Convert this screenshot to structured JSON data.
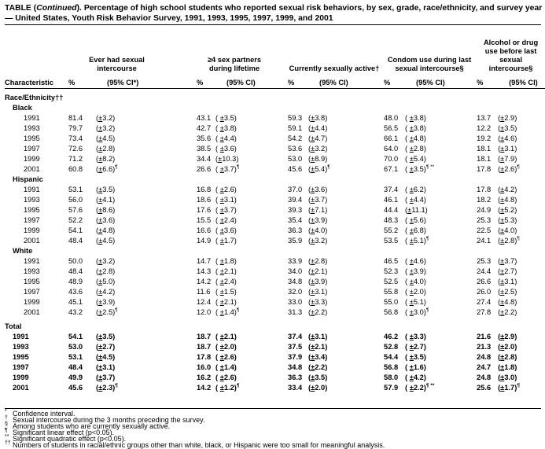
{
  "title": {
    "prefix": "TABLE (",
    "continued": "Continued",
    "text": "). Percentage of high school students who reported sexual risk behaviors, by sex, grade, race/ethnicity, and survey year — United States, Youth Risk Behavior Survey, 1991, 1993, 1995, 1997, 1999, and  2001"
  },
  "columns": {
    "characteristic": "Characteristic",
    "groups": [
      {
        "label": "Ever had sexual intercourse",
        "pct": "%",
        "ci": "(95% CI*)"
      },
      {
        "label": "≥4 sex partners during lifetime",
        "pct": "%",
        "ci": "(95% CI)"
      },
      {
        "label": "Currently sexually active†",
        "pct": "%",
        "ci": "(95% CI)"
      },
      {
        "label": "Condom use during last sexual intercourse§",
        "pct": "%",
        "ci": "(95% CI)"
      },
      {
        "label": "Alcohol or drug use before last sexual intercourse§",
        "pct": "%",
        "ci": "(95% CI)"
      }
    ]
  },
  "sections": [
    {
      "label": "Race/Ethnicity††",
      "groups": [
        {
          "label": "Black",
          "rows": [
            {
              "year": "1991",
              "cells": [
                [
                  "81.4",
                  "3.2",
                  ""
                ],
                [
                  "43.1",
                  " 3.5",
                  ""
                ],
                [
                  "59.3",
                  "3.8",
                  ""
                ],
                [
                  "48.0",
                  " 3.8",
                  ""
                ],
                [
                  "13.7",
                  "2.9",
                  ""
                ]
              ]
            },
            {
              "year": "1993",
              "cells": [
                [
                  "79.7",
                  "3.2",
                  ""
                ],
                [
                  "42.7",
                  " 3.8",
                  ""
                ],
                [
                  "59.1",
                  "4.4",
                  ""
                ],
                [
                  "56.5",
                  " 3.8",
                  ""
                ],
                [
                  "12.2",
                  "3.5",
                  ""
                ]
              ]
            },
            {
              "year": "1995",
              "cells": [
                [
                  "73.4",
                  "4.5",
                  ""
                ],
                [
                  "35.6",
                  " 4.4",
                  ""
                ],
                [
                  "54.2",
                  "4.7",
                  ""
                ],
                [
                  "66.1",
                  " 4.8",
                  ""
                ],
                [
                  "19.2",
                  "4.6",
                  ""
                ]
              ]
            },
            {
              "year": "1997",
              "cells": [
                [
                  "72.6",
                  "2.8",
                  ""
                ],
                [
                  "38.5",
                  " 3.6",
                  ""
                ],
                [
                  "53.6",
                  "3.2",
                  ""
                ],
                [
                  "64.0",
                  " 2.8",
                  ""
                ],
                [
                  "18.1",
                  "3.1",
                  ""
                ]
              ]
            },
            {
              "year": "1999",
              "cells": [
                [
                  "71.2",
                  "8.2",
                  ""
                ],
                [
                  "34.4",
                  "10.3",
                  ""
                ],
                [
                  "53.0",
                  "8.9",
                  ""
                ],
                [
                  "70.0",
                  " 5.4",
                  ""
                ],
                [
                  "18.1",
                  "7.9",
                  ""
                ]
              ]
            },
            {
              "year": "2001",
              "cells": [
                [
                  "60.8",
                  "6.6",
                  "¶"
                ],
                [
                  "26.6",
                  " 3.7",
                  "¶"
                ],
                [
                  "45.6",
                  "5.4",
                  "¶"
                ],
                [
                  "67.1",
                  " 3.5",
                  "¶ **"
                ],
                [
                  "17.8",
                  "2.6",
                  "¶"
                ]
              ]
            }
          ]
        },
        {
          "label": "Hispanic",
          "rows": [
            {
              "year": "1991",
              "cells": [
                [
                  "53.1",
                  "3.5",
                  ""
                ],
                [
                  "16.8",
                  " 2.6",
                  ""
                ],
                [
                  "37.0",
                  "3.6",
                  ""
                ],
                [
                  "37.4",
                  " 6.2",
                  ""
                ],
                [
                  "17.8",
                  "4.2",
                  ""
                ]
              ]
            },
            {
              "year": "1993",
              "cells": [
                [
                  "56.0",
                  "4.1",
                  ""
                ],
                [
                  "18.6",
                  " 3.1",
                  ""
                ],
                [
                  "39.4",
                  "3.7",
                  ""
                ],
                [
                  "46.1",
                  " 4.4",
                  ""
                ],
                [
                  "18.2",
                  "4.8",
                  ""
                ]
              ]
            },
            {
              "year": "1995",
              "cells": [
                [
                  "57.6",
                  "8.6",
                  ""
                ],
                [
                  "17.6",
                  " 3.7",
                  ""
                ],
                [
                  "39.3",
                  "7.1",
                  ""
                ],
                [
                  "44.4",
                  "11.1",
                  ""
                ],
                [
                  "24.9",
                  "5.2",
                  ""
                ]
              ]
            },
            {
              "year": "1997",
              "cells": [
                [
                  "52.2",
                  "3.6",
                  ""
                ],
                [
                  "15.5",
                  " 2.4",
                  ""
                ],
                [
                  "35.4",
                  "3.9",
                  ""
                ],
                [
                  "48.3",
                  " 5.6",
                  ""
                ],
                [
                  "25.3",
                  "5.3",
                  ""
                ]
              ]
            },
            {
              "year": "1999",
              "cells": [
                [
                  "54.1",
                  "4.8",
                  ""
                ],
                [
                  "16.6",
                  " 3.6",
                  ""
                ],
                [
                  "36.3",
                  "4.0",
                  ""
                ],
                [
                  "55.2",
                  " 6.8",
                  ""
                ],
                [
                  "22.5",
                  "4.0",
                  ""
                ]
              ]
            },
            {
              "year": "2001",
              "cells": [
                [
                  "48.4",
                  "4.5",
                  ""
                ],
                [
                  "14.9",
                  " 1.7",
                  ""
                ],
                [
                  "35.9",
                  "3.2",
                  ""
                ],
                [
                  "53.5",
                  " 5.1",
                  "¶"
                ],
                [
                  "24.1",
                  "2.8",
                  "¶"
                ]
              ]
            }
          ]
        },
        {
          "label": "White",
          "rows": [
            {
              "year": "1991",
              "cells": [
                [
                  "50.0",
                  "3.2",
                  ""
                ],
                [
                  "14.7",
                  " 1.8",
                  ""
                ],
                [
                  "33.9",
                  "2.8",
                  ""
                ],
                [
                  "46.5",
                  " 4.6",
                  ""
                ],
                [
                  "25.3",
                  "3.7",
                  ""
                ]
              ]
            },
            {
              "year": "1993",
              "cells": [
                [
                  "48.4",
                  "2.8",
                  ""
                ],
                [
                  "14.3",
                  " 2.1",
                  ""
                ],
                [
                  "34.0",
                  "2.1",
                  ""
                ],
                [
                  "52.3",
                  " 3.9",
                  ""
                ],
                [
                  "24.4",
                  "2.7",
                  ""
                ]
              ]
            },
            {
              "year": "1995",
              "cells": [
                [
                  "48.9",
                  "5.0",
                  ""
                ],
                [
                  "14.2",
                  " 2.4",
                  ""
                ],
                [
                  "34.8",
                  "3.9",
                  ""
                ],
                [
                  "52.5",
                  " 4.0",
                  ""
                ],
                [
                  "26.6",
                  "3.1",
                  ""
                ]
              ]
            },
            {
              "year": "1997",
              "cells": [
                [
                  "43.6",
                  "4.2",
                  ""
                ],
                [
                  "11.6",
                  " 1.5",
                  ""
                ],
                [
                  "32.0",
                  "3.1",
                  ""
                ],
                [
                  "55.8",
                  " 2.0",
                  ""
                ],
                [
                  "26.0",
                  "2.5",
                  ""
                ]
              ]
            },
            {
              "year": "1999",
              "cells": [
                [
                  "45.1",
                  "3.9",
                  ""
                ],
                [
                  "12.4",
                  " 2.1",
                  ""
                ],
                [
                  "33.0",
                  "3.3",
                  ""
                ],
                [
                  "55.0",
                  " 5.1",
                  ""
                ],
                [
                  "27.4",
                  "4.8",
                  ""
                ]
              ]
            },
            {
              "year": "2001",
              "cells": [
                [
                  "43.2",
                  "2.5",
                  "¶"
                ],
                [
                  "12.0",
                  " 1.4",
                  "¶"
                ],
                [
                  "31.3",
                  "2.2",
                  ""
                ],
                [
                  "56.8",
                  " 3.0",
                  "¶"
                ],
                [
                  "27.8",
                  "2.2",
                  ""
                ]
              ]
            }
          ]
        }
      ]
    },
    {
      "label": "Total",
      "total": true,
      "groups": [
        {
          "label": "",
          "rows": [
            {
              "year": "1991",
              "cells": [
                [
                  "54.1",
                  "3.5",
                  ""
                ],
                [
                  "18.7",
                  " 2.1",
                  ""
                ],
                [
                  "37.4",
                  "3.1",
                  ""
                ],
                [
                  "46.2",
                  " 3.3",
                  ""
                ],
                [
                  "21.6",
                  "2.9",
                  ""
                ]
              ]
            },
            {
              "year": "1993",
              "cells": [
                [
                  "53.0",
                  "2.7",
                  ""
                ],
                [
                  "18.7",
                  " 2.0",
                  ""
                ],
                [
                  "37.5",
                  "2.1",
                  ""
                ],
                [
                  "52.8",
                  " 2.7",
                  ""
                ],
                [
                  "21.3",
                  "2.0",
                  ""
                ]
              ]
            },
            {
              "year": "1995",
              "cells": [
                [
                  "53.1",
                  "4.5",
                  ""
                ],
                [
                  "17.8",
                  " 2.6",
                  ""
                ],
                [
                  "37.9",
                  "3.4",
                  ""
                ],
                [
                  "54.4",
                  " 3.5",
                  ""
                ],
                [
                  "24.8",
                  "2.8",
                  ""
                ]
              ]
            },
            {
              "year": "1997",
              "cells": [
                [
                  "48.4",
                  "3.1",
                  ""
                ],
                [
                  "16.0",
                  " 1.4",
                  ""
                ],
                [
                  "34.8",
                  "2.2",
                  ""
                ],
                [
                  "56.8",
                  " 1.6",
                  ""
                ],
                [
                  "24.7",
                  "1.8",
                  ""
                ]
              ]
            },
            {
              "year": "1999",
              "cells": [
                [
                  "49.9",
                  "3.7",
                  ""
                ],
                [
                  "16.2",
                  " 2.6",
                  ""
                ],
                [
                  "36.3",
                  "3.5",
                  ""
                ],
                [
                  "58.0",
                  " 4.2",
                  ""
                ],
                [
                  "24.8",
                  "3.0",
                  ""
                ]
              ]
            },
            {
              "year": "2001",
              "cells": [
                [
                  "45.6",
                  "2.3",
                  "¶"
                ],
                [
                  "14.2",
                  " 1.2",
                  "¶"
                ],
                [
                  "33.4",
                  "2.0",
                  ""
                ],
                [
                  "57.9",
                  " 2.2",
                  "¶ **"
                ],
                [
                  "25.6",
                  "1.7",
                  "¶"
                ]
              ]
            }
          ]
        }
      ]
    }
  ],
  "footnotes": [
    {
      "symbol": "*",
      "text": "Confidence interval."
    },
    {
      "symbol": "†",
      "text": "Sexual intercourse during the 3 months preceding the survey."
    },
    {
      "symbol": "§",
      "text": "Among students who are currently sexually active."
    },
    {
      "symbol": "¶",
      "text": "Significant linear effect (p<0.05)."
    },
    {
      "symbol": "**",
      "text": "Significant quadratic effect (p<0.05)."
    },
    {
      "symbol": "††",
      "text": "Numbers of students in racial/ethnic groups other than white, black, or Hispanic were too small for meaningful analysis."
    }
  ]
}
